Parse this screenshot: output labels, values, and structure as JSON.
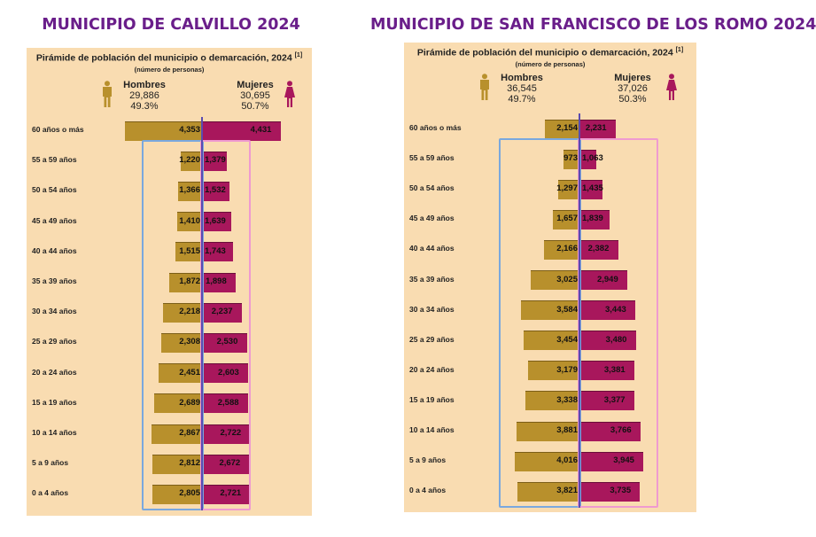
{
  "titles": {
    "left": "MUNICIPIO DE CALVILLO 2024",
    "right": "MUNICIPIO DE SAN FRANCISCO DE LOS ROMO 2024"
  },
  "colors": {
    "men": "#b8902c",
    "women": "#a8175c",
    "title": "#6a1e8a",
    "panel": "#f9dcb1",
    "men_box": "#7aa8de",
    "women_box": "#ef9ad0"
  },
  "icons": {
    "men": "man-icon",
    "women": "woman-icon"
  },
  "chart_data": [
    {
      "type": "bar",
      "title": "Pirámide de población del municipio o demarcación, 2024",
      "footnote_marker": "[1]",
      "unit_label": "(número de personas)",
      "men_label": "Hombres",
      "men_total": "29,886",
      "men_pct": "49.3%",
      "women_label": "Mujeres",
      "women_total": "30,695",
      "women_pct": "50.7%",
      "categories": [
        "60 años o más",
        "55 a 59 años",
        "50 a 54 años",
        "45 a 49 años",
        "40 a 44 años",
        "35 a 39 años",
        "30 a 34 años",
        "25 a 29 años",
        "20 a 24 años",
        "15 a 19 años",
        "10 a 14 años",
        "5 a 9 años",
        "0 a 4 años"
      ],
      "series": [
        {
          "name": "Hombres",
          "values": [
            4353,
            1220,
            1366,
            1410,
            1515,
            1872,
            2218,
            2308,
            2451,
            2689,
            2867,
            2812,
            2805
          ]
        },
        {
          "name": "Mujeres",
          "values": [
            4431,
            1379,
            1532,
            1639,
            1743,
            1898,
            2237,
            2530,
            2603,
            2588,
            2722,
            2672,
            2721
          ]
        }
      ],
      "men_value_labels": [
        "4,353",
        "1,220",
        "1,366",
        "1,410",
        "1,515",
        "1,872",
        "2,218",
        "2,308",
        "2,451",
        "2,689",
        "2,867",
        "2,812",
        "2,805"
      ],
      "women_value_labels": [
        "4,431",
        "1,379",
        "1,532",
        "1,639",
        "1,743",
        "1,898",
        "2,237",
        "2,530",
        "2,603",
        "2,588",
        "2,722",
        "2,672",
        "2,721"
      ]
    },
    {
      "type": "bar",
      "title": "Pirámide de población del municipio o demarcación, 2024",
      "footnote_marker": "[1]",
      "unit_label": "(número de personas)",
      "men_label": "Hombres",
      "men_total": "36,545",
      "men_pct": "49.7%",
      "women_label": "Mujeres",
      "women_total": "37,026",
      "women_pct": "50.3%",
      "categories": [
        "60 años o más",
        "55 a 59 años",
        "50 a 54 años",
        "45 a 49 años",
        "40 a 44 años",
        "35 a 39 años",
        "30 a 34 años",
        "25 a 29 años",
        "20 a 24 años",
        "15 a 19 años",
        "10 a 14 años",
        "5 a 9 años",
        "0 a 4 años"
      ],
      "series": [
        {
          "name": "Hombres",
          "values": [
            2154,
            973,
            1297,
            1657,
            2166,
            3025,
            3584,
            3454,
            3179,
            3338,
            3881,
            4016,
            3821
          ]
        },
        {
          "name": "Mujeres",
          "values": [
            2231,
            1063,
            1435,
            1839,
            2382,
            2949,
            3443,
            3480,
            3381,
            3377,
            3766,
            3945,
            3735
          ]
        }
      ],
      "men_value_labels": [
        "2,154",
        "973",
        "1,297",
        "1,657",
        "2,166",
        "3,025",
        "3,584",
        "3,454",
        "3,179",
        "3,338",
        "3,881",
        "4,016",
        "3,821"
      ],
      "women_value_labels": [
        "2,231",
        "1,063",
        "1,435",
        "1,839",
        "2,382",
        "2,949",
        "3,443",
        "3,480",
        "3,381",
        "3,377",
        "3,766",
        "3,945",
        "3,735"
      ]
    }
  ]
}
